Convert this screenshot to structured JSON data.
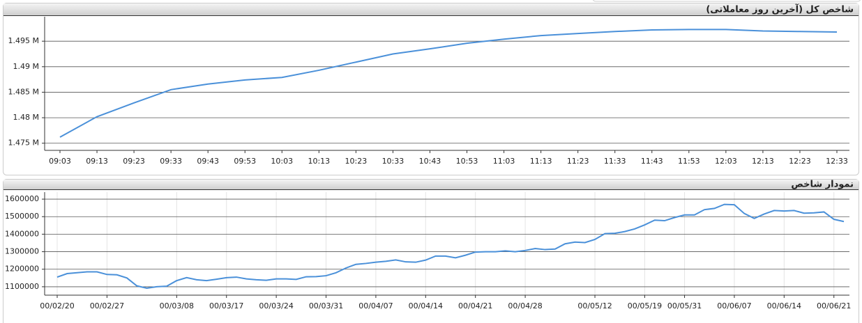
{
  "chart_data": [
    {
      "type": "line",
      "title": "شاخص کل (آخرین روز معاملاتی)",
      "categories": [
        "09:03",
        "09:13",
        "09:23",
        "09:33",
        "09:43",
        "09:53",
        "10:03",
        "10:13",
        "10:23",
        "10:33",
        "10:43",
        "10:53",
        "11:03",
        "11:13",
        "11:23",
        "11:33",
        "11:43",
        "11:53",
        "12:03",
        "12:13",
        "12:23",
        "12:33"
      ],
      "values": [
        1476200,
        1480200,
        1482900,
        1485500,
        1486600,
        1487400,
        1487900,
        1489300,
        1490900,
        1492500,
        1493500,
        1494600,
        1495400,
        1496100,
        1496500,
        1496900,
        1497200,
        1497300,
        1497300,
        1497000,
        1496900,
        1496800
      ],
      "color": "#4a90d9",
      "ylim": [
        1473600,
        1499800
      ],
      "yticks": [
        {
          "value": 1475000,
          "label": "1.475 M"
        },
        {
          "value": 1480000,
          "label": "1.48 M"
        },
        {
          "value": 1485000,
          "label": "1.485 M"
        },
        {
          "value": 1490000,
          "label": "1.49 M"
        },
        {
          "value": 1495000,
          "label": "1.495 M"
        }
      ],
      "grid": true
    },
    {
      "type": "line",
      "title": "نمودار شاخص",
      "categories": [
        "00/02/20",
        null,
        null,
        null,
        null,
        "00/02/27",
        null,
        null,
        null,
        null,
        null,
        null,
        "00/03/08",
        null,
        null,
        null,
        null,
        "00/03/17",
        null,
        null,
        null,
        null,
        "00/03/24",
        null,
        null,
        null,
        null,
        "00/03/31",
        null,
        null,
        null,
        null,
        "00/04/07",
        null,
        null,
        null,
        null,
        "00/04/14",
        null,
        null,
        null,
        null,
        "00/04/21",
        null,
        null,
        null,
        null,
        "00/04/28",
        null,
        null,
        null,
        null,
        null,
        null,
        "00/05/12",
        null,
        null,
        null,
        null,
        "00/05/19",
        null,
        null,
        null,
        "00/05/31",
        null,
        null,
        null,
        null,
        "00/06/07",
        null,
        null,
        null,
        null,
        "00/06/14",
        null,
        null,
        null,
        null,
        "00/06/21",
        null
      ],
      "values": [
        1155000,
        1175000,
        1180000,
        1185000,
        1185000,
        1170000,
        1168000,
        1150000,
        1105000,
        1092000,
        1100000,
        1103000,
        1135000,
        1152000,
        1140000,
        1135000,
        1143000,
        1152000,
        1155000,
        1145000,
        1140000,
        1137000,
        1145000,
        1145000,
        1142000,
        1157000,
        1158000,
        1163000,
        1180000,
        1207000,
        1228000,
        1233000,
        1240000,
        1245000,
        1253000,
        1242000,
        1240000,
        1252000,
        1275000,
        1275000,
        1265000,
        1280000,
        1298000,
        1300000,
        1300000,
        1305000,
        1300000,
        1307000,
        1318000,
        1312000,
        1315000,
        1345000,
        1355000,
        1352000,
        1370000,
        1403000,
        1405000,
        1415000,
        1430000,
        1453000,
        1480000,
        1477000,
        1495000,
        1510000,
        1510000,
        1540000,
        1547000,
        1570000,
        1568000,
        1518000,
        1490000,
        1515000,
        1535000,
        1532000,
        1535000,
        1520000,
        1522000,
        1527000,
        1485000,
        1472000
      ],
      "color": "#4a90d9",
      "ylim": [
        1052000,
        1640000
      ],
      "yticks": [
        1100000,
        1200000,
        1300000,
        1400000,
        1500000,
        1600000
      ],
      "grid": true
    }
  ]
}
